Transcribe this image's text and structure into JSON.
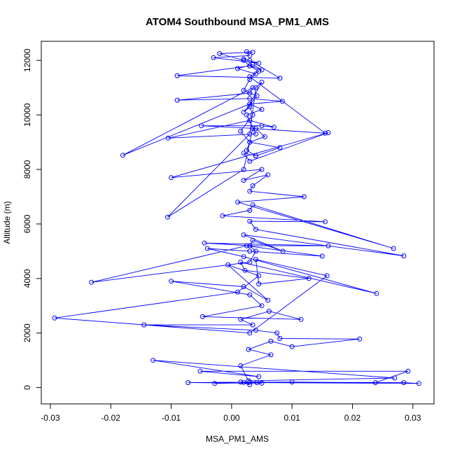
{
  "chart_data": {
    "type": "scatter",
    "title": "ATOM4 Southbound MSA_PM1_AMS",
    "xlabel": "MSA_PM1_AMS",
    "ylabel": "Altitude (m)",
    "xlim": [
      -0.0315,
      0.0335
    ],
    "ylim": [
      -600,
      12700
    ],
    "xticks": [
      -0.03,
      -0.02,
      -0.01,
      0.0,
      0.01,
      0.02,
      0.03
    ],
    "xtick_labels": [
      "-0.03",
      "-0.02",
      "-0.01",
      "0.00",
      "0.01",
      "0.02",
      "0.03"
    ],
    "yticks": [
      0,
      2000,
      4000,
      6000,
      8000,
      10000,
      12000
    ],
    "ytick_labels": [
      "0",
      "2000",
      "4000",
      "6000",
      "8000",
      "10000",
      "12000"
    ],
    "series": [
      {
        "name": "MSA_PM1_AMS",
        "color": "#0000ff",
        "style": "points and lines",
        "x": [
          0.003,
          0.0015,
          -0.0028,
          0.0042,
          0.031,
          0.0285,
          0.003,
          -0.0072,
          0.005,
          0.002,
          0.01,
          0.0238,
          0.0292,
          -0.0052,
          0.0045,
          -0.013,
          0.027,
          0.0028,
          0.0015,
          0.0065,
          0.0028,
          0.0065,
          0.01,
          0.0212,
          0.008,
          0.0075,
          0.004,
          -0.0145,
          0.0035,
          0.0015,
          0.0062,
          0.0115,
          -0.0048,
          0.005,
          0.003,
          -0.01,
          0.002,
          0.006,
          -0.0006,
          0.0045,
          0.001,
          -0.0293,
          0.003,
          0.0158,
          0.004,
          0.0045,
          0.0128,
          0.0022,
          0.0015,
          0.024,
          0.002,
          -0.004,
          0.003,
          0.015,
          0.0025,
          -0.0232,
          0.003,
          0.004,
          0.003,
          0.016,
          -0.0045,
          0.003,
          0.0035,
          0.0085,
          0.002,
          0.0285,
          0.004,
          0.003,
          0.0155,
          -0.0015,
          0.003,
          0.0035,
          0.0268,
          0.001,
          0.012,
          0.003,
          0.0035,
          0.006,
          0.002,
          0.005,
          -0.01,
          0.016,
          0.003,
          0.002,
          0.004,
          0.008,
          0.003,
          0.0055,
          0.004,
          -0.005,
          0.005,
          0.007,
          0.003,
          -0.0105,
          0.004,
          0.0025,
          0.005,
          0.003,
          0.0084,
          0.003,
          -0.009,
          0.003,
          0.0035,
          -0.018,
          0.003,
          0.005,
          0.004,
          0.003,
          -0.0106,
          0.002,
          0.0035,
          0.0155,
          0.003,
          0.0045,
          0.003,
          -0.009,
          0.008,
          0.003,
          0.002,
          0.0045,
          -0.003,
          0.003,
          0.0025,
          0.0035,
          -0.002,
          0.002,
          0.003,
          0.005,
          0.0035,
          0.001,
          0.004,
          0.003,
          0.002,
          0.003,
          0.0042,
          0.002,
          0.003,
          0.0035,
          0.0015,
          0.003,
          0.0025,
          0.004
        ],
        "y": [
          100,
          200,
          150,
          180,
          150,
          180,
          200,
          180,
          160,
          190,
          200,
          180,
          600,
          600,
          400,
          1000,
          350,
          250,
          800,
          1200,
          1400,
          1700,
          1500,
          1780,
          1800,
          2000,
          2100,
          2300,
          2300,
          2500,
          2800,
          2500,
          2600,
          3000,
          3400,
          3900,
          3700,
          3200,
          4500,
          4100,
          3500,
          2550,
          2000,
          4100,
          4700,
          3800,
          4000,
          4300,
          4600,
          3450,
          4800,
          5100,
          5000,
          4820,
          5200,
          3860,
          4600,
          5000,
          5200,
          5200,
          5300,
          5200,
          5400,
          5000,
          5600,
          4830,
          5800,
          6100,
          6080,
          6300,
          6500,
          6700,
          5100,
          6800,
          7000,
          7200,
          7400,
          7800,
          7600,
          8000,
          7700,
          9350,
          8300,
          8600,
          8500,
          8800,
          9000,
          9200,
          9500,
          9600,
          9600,
          9550,
          9800,
          9150,
          9300,
          10000,
          10200,
          10400,
          10500,
          10600,
          10540,
          10800,
          11000,
          8520,
          10400,
          11200,
          11000,
          9300,
          6250,
          8000,
          9500,
          9330,
          11400,
          11600,
          11800,
          11440,
          11350,
          12000,
          12050,
          11900,
          12100,
          12180,
          12320,
          12300,
          12250,
          12000,
          11800,
          11650,
          11850,
          11700,
          11500,
          11300,
          10900,
          10800,
          10700,
          10100,
          10300,
          10000,
          9400,
          9000,
          8700,
          8500
        ]
      }
    ]
  }
}
